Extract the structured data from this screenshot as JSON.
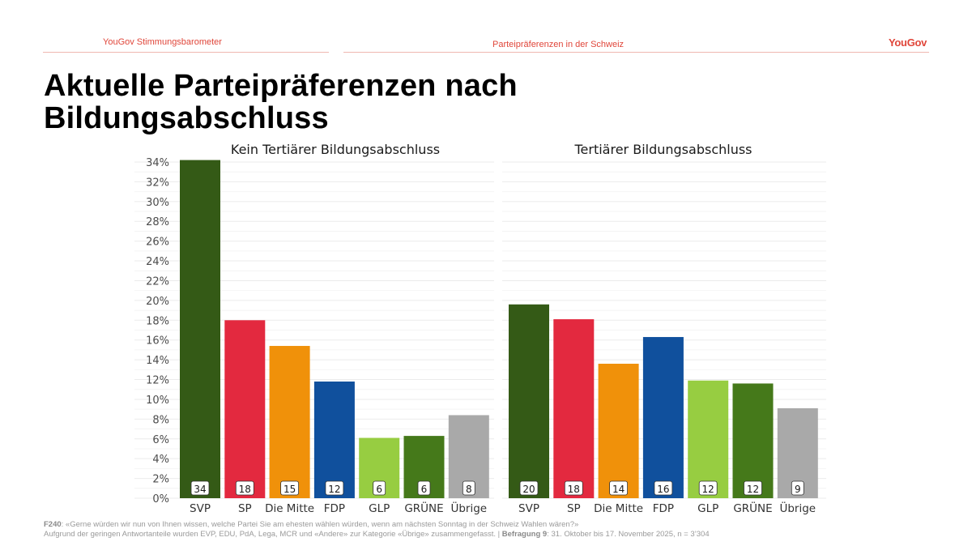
{
  "header": {
    "left_label": "YouGov Stimmungsbarometer",
    "center_label": "Parteipräferenzen in der Schweiz",
    "logo": "YouGov",
    "accent_color": "#e0463a"
  },
  "title": {
    "line1": "Aktuelle Parteipräferenzen nach",
    "line2": "Bildungsabschluss"
  },
  "footer": {
    "question_code": "F240",
    "question_text": ": «Gerne würden wir nun von Ihnen wissen, welche Partei Sie am ehesten wählen würden, wenn am nächsten Sonntag in der Schweiz Wahlen wären?»",
    "note": "Aufgrund der geringen Antwortanteile wurden EVP, EDU, PdA, Lega, MCR und «Andere» zur Kategorie «Übrige» zusammengefasst. | ",
    "survey_label": "Befragung 9",
    "survey_text": ": 31. Oktober bis 17. November 2025, n = 3’304"
  },
  "chart_data": {
    "type": "bar",
    "title": "Aktuelle Parteipräferenzen nach Bildungsabschluss",
    "xlabel": "",
    "ylabel": "",
    "ylim": [
      0,
      34
    ],
    "yticks": [
      "0%",
      "2%",
      "4%",
      "6%",
      "8%",
      "10%",
      "12%",
      "14%",
      "16%",
      "18%",
      "20%",
      "22%",
      "24%",
      "26%",
      "28%",
      "30%",
      "32%",
      "34%"
    ],
    "grid": true,
    "legend": "none",
    "categories": [
      "SVP",
      "SP",
      "Die Mitte",
      "FDP",
      "GLP",
      "GRÜNE",
      "Übrige"
    ],
    "colors": [
      "#345a16",
      "#e3293f",
      "#f0910a",
      "#10509d",
      "#97cd41",
      "#45791a",
      "#a9a9a9"
    ],
    "panels": [
      {
        "name": "Kein Tertiärer Bildungsabschluss",
        "values": [
          34.2,
          18.0,
          15.4,
          11.8,
          6.1,
          6.3,
          8.4
        ],
        "labels": [
          "34",
          "18",
          "15",
          "12",
          "6",
          "6",
          "8"
        ]
      },
      {
        "name": "Tertiärer Bildungsabschluss",
        "values": [
          19.6,
          18.1,
          13.6,
          16.3,
          11.9,
          11.6,
          9.1
        ],
        "labels": [
          "20",
          "18",
          "14",
          "16",
          "12",
          "12",
          "9"
        ]
      }
    ]
  }
}
